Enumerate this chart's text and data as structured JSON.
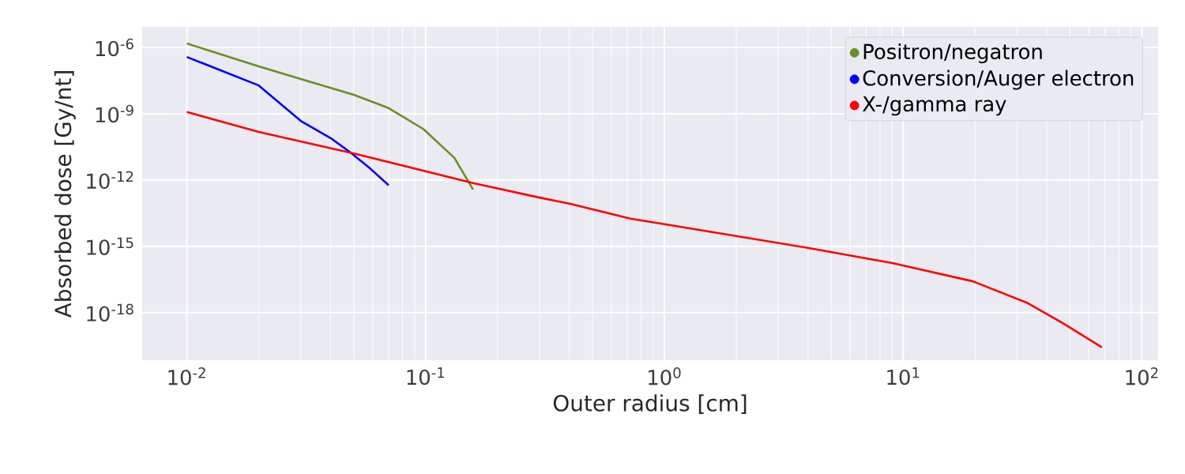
{
  "chart_data": {
    "type": "line",
    "xlabel": "Outer radius [cm]",
    "ylabel": "Absorbed dose [Gy/nt]",
    "log": "xy",
    "grid": true,
    "legend": "top right",
    "marker": "none",
    "line_style": "solid",
    "xlim": [
      0.0065,
      117
    ],
    "ylim": [
      7e-21,
      8.5e-06
    ],
    "xticks": [
      {
        "value": 0.01,
        "label": "10$^{-2}$"
      },
      {
        "value": 0.1,
        "label": "10$^{-1}$"
      },
      {
        "value": 1,
        "label": "10$^{0}$"
      },
      {
        "value": 10,
        "label": "10$^{1}$"
      },
      {
        "value": 100,
        "label": "10$^{2}$"
      }
    ],
    "yticks": [
      {
        "value": 1e-18,
        "label": "10$^{-18}$"
      },
      {
        "value": 1e-15,
        "label": "10$^{-15}$"
      },
      {
        "value": 1e-12,
        "label": "10$^{-12}$"
      },
      {
        "value": 1e-09,
        "label": "10$^{-9}$"
      },
      {
        "value": 1e-06,
        "label": "10$^{-6}$"
      }
    ],
    "series": [
      {
        "name": "Positron/negatron",
        "color": "#6b8e23",
        "x": [
          0.01,
          0.02,
          0.03,
          0.05,
          0.07,
          0.098,
          0.132,
          0.158
        ],
        "values": [
          1.5e-06,
          1.4e-07,
          3.7e-08,
          7.2e-09,
          1.8e-09,
          2e-10,
          1e-11,
          3.7e-13
        ]
      },
      {
        "name": "Conversion/Auger electron",
        "color": "#0000ff",
        "x": [
          0.01,
          0.02,
          0.03,
          0.04,
          0.049,
          0.0586,
          0.07
        ],
        "values": [
          3.7e-07,
          1.9e-08,
          4.7e-10,
          7.9e-11,
          1.6e-11,
          3.3e-12,
          5.8e-13
        ]
      },
      {
        "name": "X-/gamma ray",
        "color": "#ff0000",
        "x": [
          0.01,
          0.02,
          0.05,
          0.158,
          0.3,
          0.4,
          0.72,
          1,
          3.9,
          9.1,
          19.6,
          33,
          47,
          68
        ],
        "values": [
          1.2e-09,
          1.5e-10,
          1.6e-11,
          7.2e-13,
          1.6e-13,
          8.5e-14,
          1.8e-14,
          1e-14,
          8.9e-16,
          1.7e-16,
          2.6e-17,
          2.8e-18,
          3.2e-19,
          2.7e-20
        ]
      }
    ]
  }
}
